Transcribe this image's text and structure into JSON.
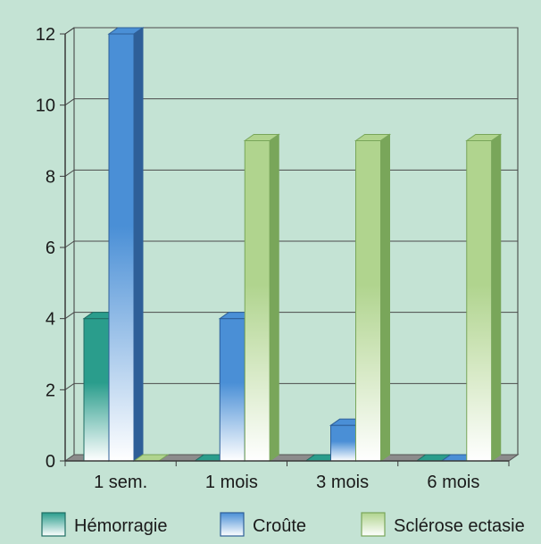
{
  "colors": {
    "background": "#c4e3d4",
    "gridline": "#4b4b4b",
    "axis": "#3a3a3a",
    "floor": "#8c8c8c"
  },
  "chart_data": {
    "type": "bar",
    "title": "",
    "xlabel": "",
    "ylabel": "",
    "ylim": [
      0,
      12
    ],
    "yticks": [
      0,
      2,
      4,
      6,
      8,
      10,
      12
    ],
    "grid": true,
    "legend_position": "bottom",
    "categories": [
      "1 sem.",
      "1 mois",
      "3 mois",
      "6 mois"
    ],
    "series": [
      {
        "name": "Hémorragie",
        "values": [
          4,
          0,
          0,
          0
        ],
        "color_top": "#2a9d8c",
        "color_bottom": "#ffffff",
        "color_side": "#1f6d63"
      },
      {
        "name": "Croûte",
        "values": [
          12,
          4,
          1,
          0
        ],
        "color_top": "#4a8fd6",
        "color_bottom": "#ffffff",
        "color_side": "#2e5f98"
      },
      {
        "name": "Sclérose ectasie",
        "values": [
          0,
          9,
          9,
          9
        ],
        "color_top": "#b0d48e",
        "color_bottom": "#ffffff",
        "color_side": "#79a65a"
      }
    ]
  }
}
